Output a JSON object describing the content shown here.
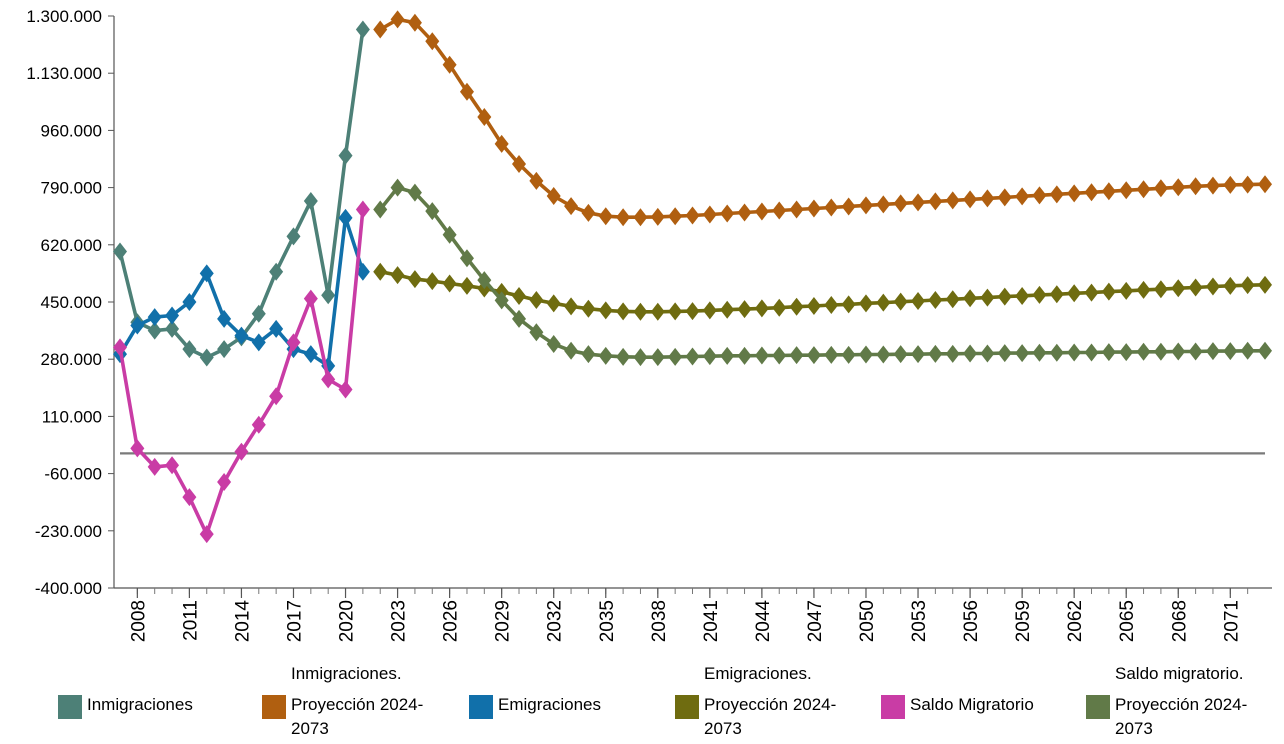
{
  "chart_data": {
    "type": "line",
    "y_ticks": [
      "-400.000",
      "-230.000",
      "-60.000",
      "110.000",
      "280.000",
      "450.000",
      "620.000",
      "790.000",
      "960.000",
      "1.130.000",
      "1.300.000"
    ],
    "ylim": [
      -400000,
      1300000
    ],
    "x_ticks": [
      2008,
      2011,
      2014,
      2017,
      2020,
      2023,
      2026,
      2029,
      2032,
      2035,
      2038,
      2041,
      2044,
      2047,
      2050,
      2053,
      2056,
      2059,
      2062,
      2065,
      2068,
      2071
    ],
    "xlim": [
      2007,
      2073
    ],
    "zero_line": 0,
    "series": [
      {
        "name": "Inmigraciones",
        "color": "#4d8077",
        "marker": "diamond",
        "x": [
          2007,
          2008,
          2009,
          2010,
          2011,
          2012,
          2013,
          2014,
          2015,
          2016,
          2017,
          2018,
          2019,
          2020,
          2021
        ],
        "values": [
          600000,
          390000,
          365000,
          370000,
          310000,
          285000,
          310000,
          345000,
          415000,
          540000,
          645000,
          750000,
          470000,
          885000,
          1260000
        ]
      },
      {
        "name": "Proyección 2024-2073",
        "color": "#b05f10",
        "marker": "diamond",
        "x": [
          2022,
          2023,
          2024,
          2025,
          2026,
          2027,
          2028,
          2029,
          2030,
          2031,
          2032,
          2033,
          2034,
          2035,
          2036,
          2037,
          2038,
          2039,
          2040,
          2041,
          2042,
          2043,
          2044,
          2045,
          2046,
          2047,
          2048,
          2049,
          2050,
          2051,
          2052,
          2053,
          2054,
          2055,
          2056,
          2057,
          2058,
          2059,
          2060,
          2061,
          2062,
          2063,
          2064,
          2065,
          2066,
          2067,
          2068,
          2069,
          2070,
          2071,
          2072,
          2073
        ],
        "values": [
          1260000,
          1290000,
          1280000,
          1225000,
          1155000,
          1075000,
          1000000,
          920000,
          860000,
          810000,
          765000,
          735000,
          715000,
          705000,
          702000,
          702000,
          703000,
          705000,
          707000,
          710000,
          713000,
          716000,
          719000,
          722000,
          725000,
          728000,
          731000,
          734000,
          737000,
          740000,
          743000,
          746000,
          749000,
          752000,
          755000,
          758000,
          761000,
          764000,
          767000,
          770000,
          773000,
          776000,
          779000,
          782000,
          785000,
          788000,
          791000,
          794000,
          796000,
          798000,
          799000,
          800000
        ]
      },
      {
        "name": "Emigraciones",
        "color": "#1170aa",
        "marker": "diamond",
        "x": [
          2007,
          2008,
          2009,
          2010,
          2011,
          2012,
          2013,
          2014,
          2015,
          2016,
          2017,
          2018,
          2019,
          2020,
          2021
        ],
        "values": [
          295000,
          380000,
          405000,
          410000,
          450000,
          535000,
          400000,
          350000,
          330000,
          370000,
          310000,
          295000,
          260000,
          700000,
          540000
        ]
      },
      {
        "name": "Proyección 2024-2073",
        "color": "#6f6c10",
        "marker": "diamond",
        "x": [
          2022,
          2023,
          2024,
          2025,
          2026,
          2027,
          2028,
          2029,
          2030,
          2031,
          2032,
          2033,
          2034,
          2035,
          2036,
          2037,
          2038,
          2039,
          2040,
          2041,
          2042,
          2043,
          2044,
          2045,
          2046,
          2047,
          2048,
          2049,
          2050,
          2051,
          2052,
          2053,
          2054,
          2055,
          2056,
          2057,
          2058,
          2059,
          2060,
          2061,
          2062,
          2063,
          2064,
          2065,
          2066,
          2067,
          2068,
          2069,
          2070,
          2071,
          2072,
          2073
        ],
        "values": [
          540000,
          530000,
          518000,
          512000,
          505000,
          498000,
          490000,
          480000,
          468000,
          456000,
          446000,
          437000,
          430000,
          425000,
          422000,
          421000,
          421000,
          422000,
          423000,
          425000,
          427000,
          429000,
          431000,
          433000,
          436000,
          438000,
          441000,
          443000,
          446000,
          448000,
          451000,
          453000,
          456000,
          458000,
          461000,
          463000,
          466000,
          468000,
          471000,
          473000,
          476000,
          478000,
          481000,
          483000,
          486000,
          488000,
          491000,
          493000,
          496000,
          498000,
          500000,
          501000
        ]
      },
      {
        "name": "Saldo Migratorio",
        "color": "#c93ca5",
        "marker": "diamond",
        "x": [
          2007,
          2008,
          2009,
          2010,
          2011,
          2012,
          2013,
          2014,
          2015,
          2016,
          2017,
          2018,
          2019,
          2020,
          2021
        ],
        "values": [
          315000,
          15000,
          -40000,
          -35000,
          -130000,
          -240000,
          -85000,
          5000,
          85000,
          170000,
          330000,
          460000,
          220000,
          190000,
          725000
        ]
      },
      {
        "name": "Proyección 2024-2073",
        "color": "#617a48",
        "marker": "diamond",
        "x": [
          2022,
          2023,
          2024,
          2025,
          2026,
          2027,
          2028,
          2029,
          2030,
          2031,
          2032,
          2033,
          2034,
          2035,
          2036,
          2037,
          2038,
          2039,
          2040,
          2041,
          2042,
          2043,
          2044,
          2045,
          2046,
          2047,
          2048,
          2049,
          2050,
          2051,
          2052,
          2053,
          2054,
          2055,
          2056,
          2057,
          2058,
          2059,
          2060,
          2061,
          2062,
          2063,
          2064,
          2065,
          2066,
          2067,
          2068,
          2069,
          2070,
          2071,
          2072,
          2073
        ],
        "values": [
          725000,
          790000,
          775000,
          720000,
          650000,
          580000,
          515000,
          455000,
          400000,
          360000,
          325000,
          305000,
          295000,
          290000,
          287000,
          286000,
          286000,
          287000,
          288000,
          289000,
          290000,
          290000,
          291000,
          291000,
          292000,
          292000,
          293000,
          293000,
          294000,
          294000,
          295000,
          295000,
          296000,
          296000,
          297000,
          297000,
          298000,
          298000,
          299000,
          299000,
          300000,
          300000,
          301000,
          301000,
          302000,
          302000,
          303000,
          303000,
          304000,
          304000,
          305000,
          305000
        ]
      }
    ]
  },
  "legend": {
    "headers": [
      {
        "text": "Inmigraciones."
      },
      {
        "text": "Emigraciones."
      },
      {
        "text": "Saldo migratorio."
      }
    ],
    "items": [
      {
        "label": "Inmigraciones",
        "color": "#4d8077"
      },
      {
        "label": "Proyección 2024-2073",
        "color": "#b05f10"
      },
      {
        "label": "Emigraciones",
        "color": "#1170aa"
      },
      {
        "label": "Proyección 2024-2073",
        "color": "#6f6c10"
      },
      {
        "label": "Saldo Migratorio",
        "color": "#c93ca5"
      },
      {
        "label": "Proyección 2024-2073",
        "color": "#617a48"
      }
    ]
  }
}
